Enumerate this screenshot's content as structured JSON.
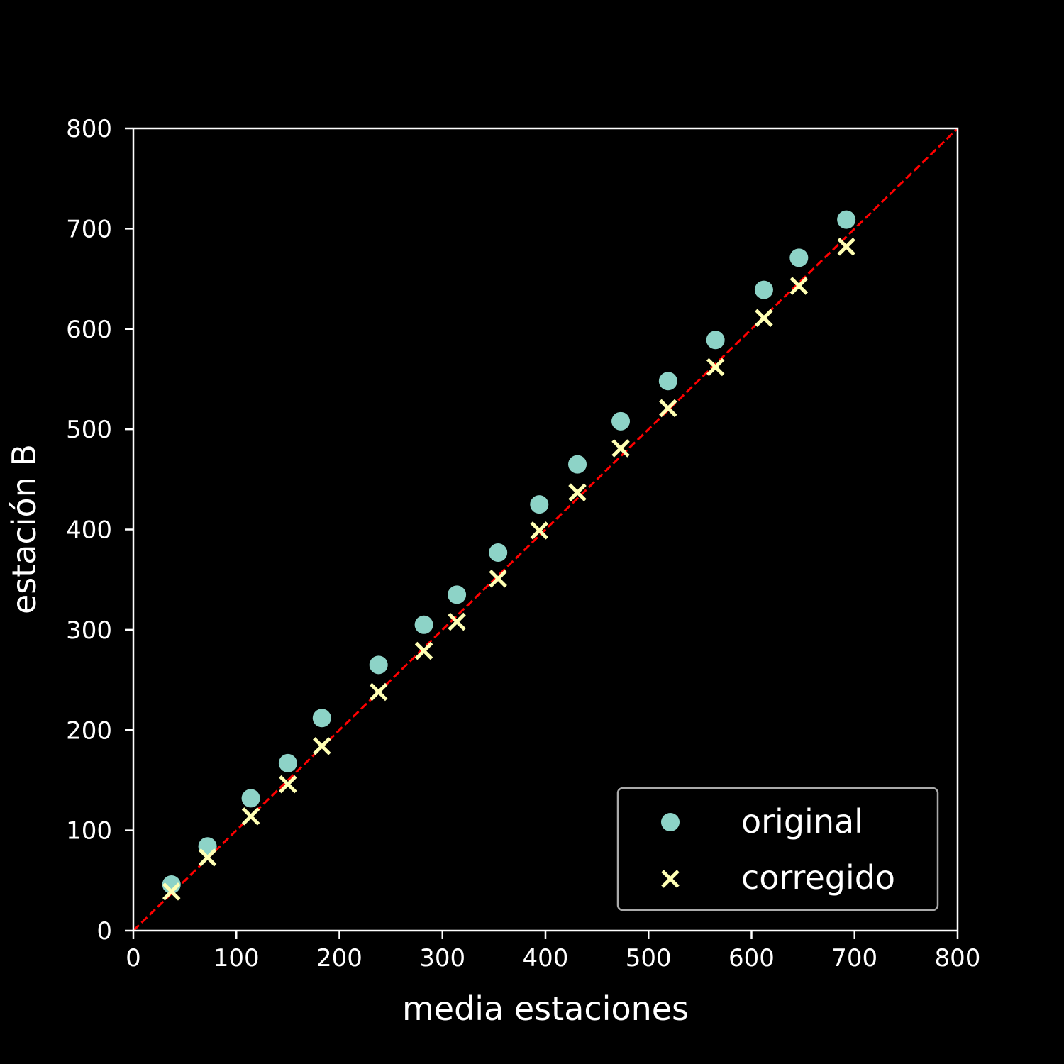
{
  "chart_data": {
    "type": "scatter",
    "title": "",
    "xlabel": "media estaciones",
    "ylabel": "estación B",
    "xlim": [
      0,
      800
    ],
    "ylim": [
      0,
      800
    ],
    "xticks": [
      "0",
      "100",
      "200",
      "300",
      "400",
      "500",
      "600",
      "700",
      "800"
    ],
    "yticks": [
      "0",
      "100",
      "200",
      "300",
      "400",
      "500",
      "600",
      "700",
      "800"
    ],
    "grid": false,
    "legend_position": "lower-right",
    "reference_line": {
      "style": "dashed",
      "color": "#ff0000",
      "points": [
        [
          0,
          0
        ],
        [
          800,
          800
        ]
      ]
    },
    "series": [
      {
        "name": "original",
        "marker": "circle",
        "color": "#8dd3c7",
        "x": [
          37,
          72,
          114,
          150,
          183,
          238,
          282,
          314,
          354,
          394,
          431,
          473,
          519,
          565,
          612,
          646,
          692
        ],
        "y": [
          46,
          84,
          132,
          167,
          212,
          265,
          305,
          335,
          377,
          425,
          465,
          508,
          548,
          589,
          639,
          671,
          709
        ]
      },
      {
        "name": "corregido",
        "marker": "x",
        "color": "#ffffb3",
        "x": [
          37,
          72,
          114,
          150,
          183,
          238,
          282,
          314,
          354,
          394,
          431,
          473,
          519,
          565,
          612,
          646,
          692
        ],
        "y": [
          39,
          73,
          114,
          146,
          184,
          238,
          279,
          308,
          351,
          399,
          437,
          481,
          521,
          562,
          611,
          643,
          682
        ]
      }
    ]
  }
}
